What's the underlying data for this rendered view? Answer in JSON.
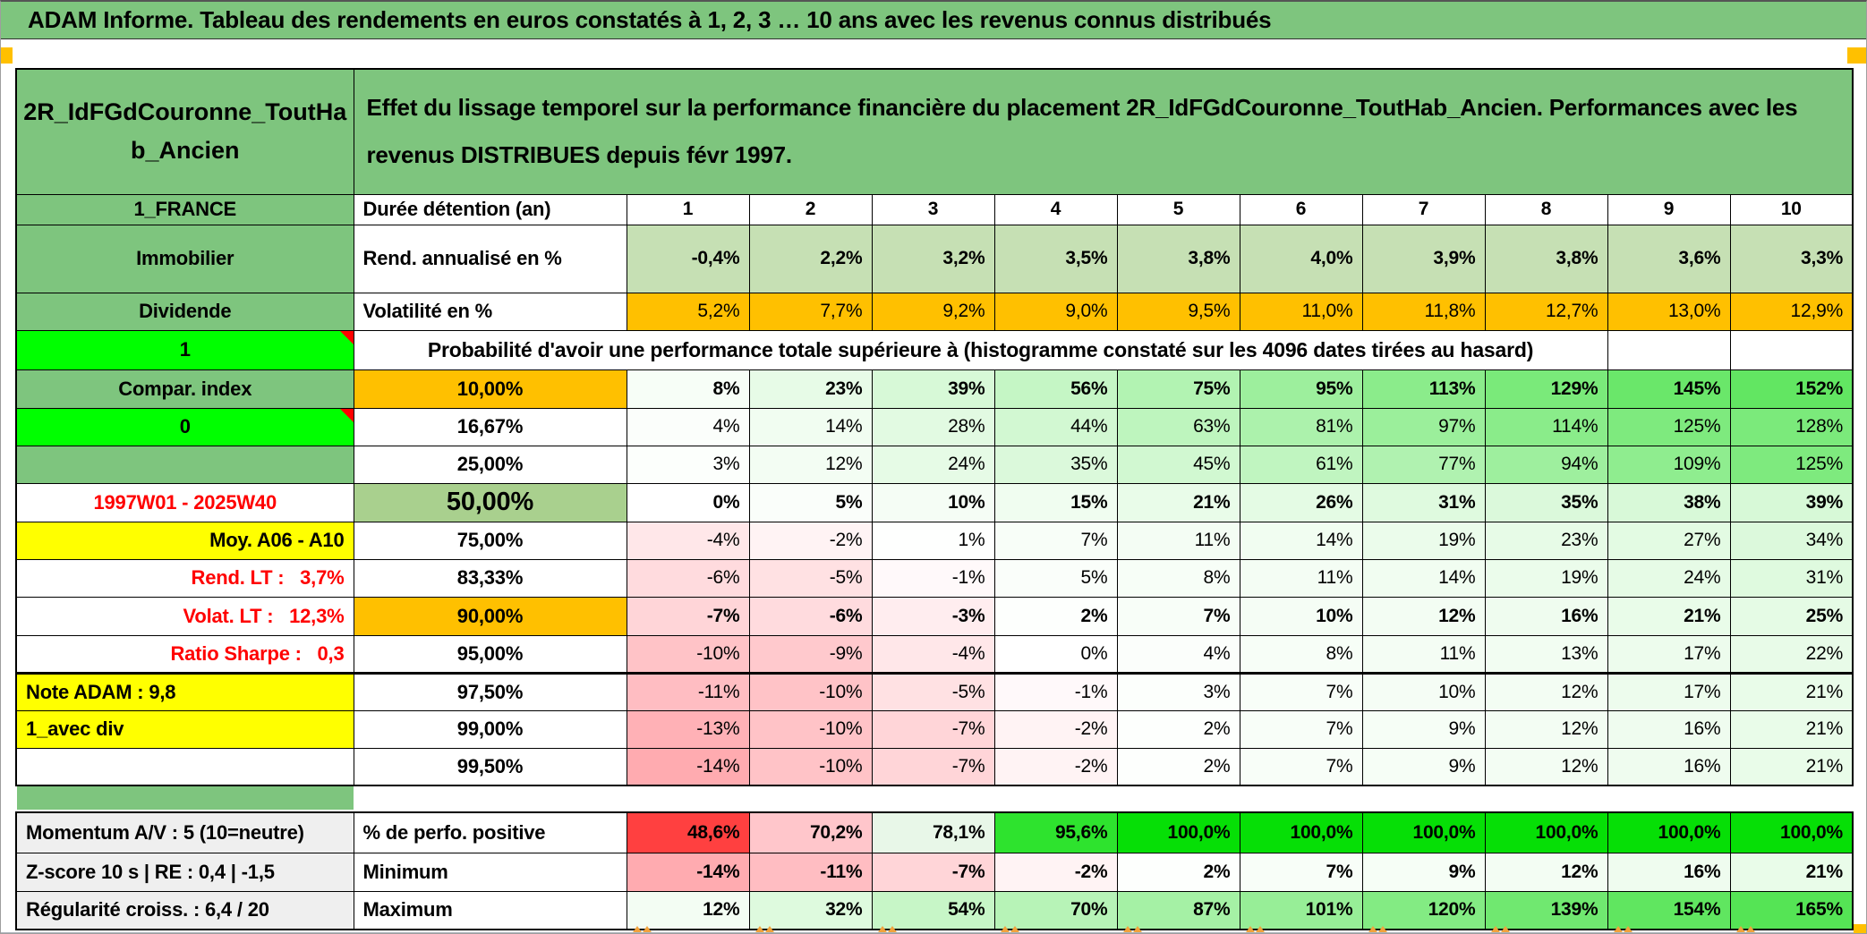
{
  "title": "ADAM Informe. Tableau des rendements en euros constatés à 1, 2, 3 … 10 ans avec les revenus connus distribués",
  "header": {
    "left_label": "2R_IdFGdCouronne_ToutHab_Ancien",
    "description": "Effet du lissage temporel sur la performance financière du placement 2R_IdFGdCouronne_ToutHab_Ancien. Performances avec les revenus DISTRIBUES depuis févr 1997."
  },
  "colors": {
    "band_green": "#7EC57E",
    "bright_green": "#00FF00",
    "orange": "#FFC000",
    "yellow": "#FFFF00",
    "light_green_row": "#C6E0B4",
    "mid_green": "#A9D08E",
    "gray_label": "#EFEFEF",
    "red_text": "#FF0000"
  },
  "main_rows": [
    {
      "key": "duree",
      "label": "1_FRANCE",
      "ls": "green",
      "metric": "Durée détention (an)",
      "ms": "m-left",
      "align": "center",
      "bold": true,
      "bg": "#FFFFFF",
      "cells": [
        "1",
        "2",
        "3",
        "4",
        "5",
        "6",
        "7",
        "8",
        "9",
        "10"
      ]
    },
    {
      "key": "rendement",
      "label": "Immobilier",
      "ls": "green",
      "metric": "Rend. annualisé en %",
      "ms": "m-left",
      "bold": true,
      "bg": "#C6E0B4",
      "cells": [
        "-0,4%",
        "2,2%",
        "3,2%",
        "3,5%",
        "3,8%",
        "4,0%",
        "3,9%",
        "3,8%",
        "3,6%",
        "3,3%"
      ]
    },
    {
      "key": "volatilite",
      "label": "Dividende",
      "ls": "green",
      "metric": "Volatilité en %",
      "ms": "m-left",
      "bg": "#FFC000",
      "cells": [
        "5,2%",
        "7,7%",
        "9,2%",
        "9,0%",
        "9,5%",
        "11,0%",
        "11,8%",
        "12,7%",
        "13,0%",
        "12,9%"
      ]
    },
    {
      "key": "proba",
      "type": "merged",
      "label": "1",
      "ls": "bgreen",
      "corner": true,
      "span": 9,
      "empty": 2,
      "text": "Probabilité d'avoir une performance totale supérieure à (histogramme constaté sur les 4096 dates tirées au hasard)"
    },
    {
      "key": "p10",
      "label": "Compar. index",
      "ls": "green",
      "metric": "10,00%",
      "ms": "m-orange",
      "bold": true,
      "cells": [
        "8%",
        "23%",
        "39%",
        "56%",
        "75%",
        "95%",
        "113%",
        "129%",
        "145%",
        "152%"
      ],
      "bgs": [
        "#F7FEF7",
        "#E7FBE7",
        "#D7F9D7",
        "#C5F6C5",
        "#B2F3B2",
        "#9DEF9D",
        "#8BEC8B",
        "#7AEA7A",
        "#6AE76A",
        "#62E662"
      ]
    },
    {
      "key": "p1667",
      "label": "0",
      "ls": "bgreen",
      "corner": true,
      "metric": "16,67%",
      "ms": "m-center",
      "cells": [
        "4%",
        "14%",
        "28%",
        "44%",
        "63%",
        "81%",
        "97%",
        "114%",
        "125%",
        "128%"
      ],
      "bgs": [
        "#FBFEFB",
        "#F1FDF1",
        "#E2FAE2",
        "#D2F8D2",
        "#BEF5BE",
        "#ACF2AC",
        "#9BEF9B",
        "#8AEC8A",
        "#7EEA7E",
        "#7BEA7B"
      ]
    },
    {
      "key": "p25",
      "label": "",
      "ls": "green",
      "metric": "25,00%",
      "ms": "m-center",
      "cells": [
        "3%",
        "12%",
        "24%",
        "35%",
        "45%",
        "61%",
        "77%",
        "94%",
        "109%",
        "125%"
      ],
      "bgs": [
        "#FCFFFC",
        "#F3FDF3",
        "#E6FBE6",
        "#DBF9DB",
        "#D1F8D1",
        "#C0F5C0",
        "#B0F2B0",
        "#9EEF9E",
        "#8FED8F",
        "#7EEA7E"
      ]
    },
    {
      "key": "p50",
      "label": "1997W01 - 2025W40",
      "ls": "redlabel",
      "metric": "50,00%",
      "ms": "m-big",
      "bold": true,
      "cells": [
        "0%",
        "5%",
        "10%",
        "15%",
        "21%",
        "26%",
        "31%",
        "35%",
        "38%",
        "39%"
      ],
      "bgs": [
        "#FFFFFF",
        "#FAFEFA",
        "#F5FDF5",
        "#F0FDF0",
        "#E9FCE9",
        "#E4FBE4",
        "#DFFADF",
        "#DBF9DB",
        "#D8F9D8",
        "#D7F9D7"
      ]
    },
    {
      "key": "p75",
      "label": "Moy. A06 - A10",
      "ls": "yellow-r",
      "metric": "75,00%",
      "ms": "m-center",
      "cells": [
        "-4%",
        "-2%",
        "1%",
        "7%",
        "11%",
        "14%",
        "19%",
        "23%",
        "27%",
        "34%"
      ],
      "bgs": [
        "#FFE7E9",
        "#FFF3F4",
        "#FEFFFE",
        "#F8FEF8",
        "#F4FDF4",
        "#F1FDF1",
        "#EBFCEB",
        "#E7FBE7",
        "#E3FBE3",
        "#DCF9DC"
      ]
    },
    {
      "key": "p8333",
      "label": "Rend. LT :   3,7%",
      "ls": "red-r",
      "metric": "83,33%",
      "ms": "m-center",
      "cells": [
        "-6%",
        "-5%",
        "-1%",
        "5%",
        "8%",
        "11%",
        "14%",
        "19%",
        "24%",
        "31%"
      ],
      "bgs": [
        "#FFDBDE",
        "#FFE1E3",
        "#FFF9FA",
        "#FAFEFA",
        "#F7FEF7",
        "#F4FDF4",
        "#F1FDF1",
        "#EBFCEB",
        "#E6FBE6",
        "#DFFADF"
      ]
    },
    {
      "key": "p90",
      "label": "Volat. LT :   12,3%",
      "ls": "red-r",
      "metric": "90,00%",
      "ms": "m-orange",
      "bold": true,
      "cells": [
        "-7%",
        "-6%",
        "-3%",
        "2%",
        "7%",
        "10%",
        "12%",
        "16%",
        "21%",
        "25%"
      ],
      "bgs": [
        "#FFD5D8",
        "#FFDBDE",
        "#FFEDEF",
        "#FDFFFD",
        "#F8FEF8",
        "#F5FDF5",
        "#F3FDF3",
        "#EFFCEF",
        "#E9FCE9",
        "#E5FBE5"
      ]
    },
    {
      "key": "p95",
      "label": "Ratio Sharpe :   0,3",
      "ls": "red-r",
      "metric": "95,00%",
      "ms": "m-center",
      "thickBottom": true,
      "cells": [
        "-10%",
        "-9%",
        "-4%",
        "0%",
        "4%",
        "8%",
        "11%",
        "13%",
        "17%",
        "22%"
      ],
      "bgs": [
        "#FFC3C7",
        "#FFC9CD",
        "#FFE7E9",
        "#FFFFFF",
        "#FBFEFB",
        "#F7FEF7",
        "#F4FDF4",
        "#F2FDF2",
        "#EDFCED",
        "#E8FBE8"
      ]
    },
    {
      "key": "p975",
      "label": "Note ADAM : 9,8",
      "ls": "yellow-l",
      "metric": "97,50%",
      "ms": "m-center",
      "cells": [
        "-11%",
        "-10%",
        "-5%",
        "-1%",
        "3%",
        "7%",
        "10%",
        "12%",
        "17%",
        "21%"
      ],
      "bgs": [
        "#FFBDC2",
        "#FFC3C7",
        "#FFE1E3",
        "#FFF9FA",
        "#FCFFFC",
        "#F8FEF8",
        "#F5FDF5",
        "#F3FDF3",
        "#EDFCED",
        "#E9FCE9"
      ]
    },
    {
      "key": "p99",
      "label": "1_avec div",
      "ls": "yellow-l",
      "metric": "99,00%",
      "ms": "m-center",
      "cells": [
        "-13%",
        "-10%",
        "-7%",
        "-2%",
        "2%",
        "7%",
        "9%",
        "12%",
        "16%",
        "21%"
      ],
      "bgs": [
        "#FFB1B6",
        "#FFC3C7",
        "#FFD5D8",
        "#FFF3F4",
        "#FDFFFD",
        "#F8FEF8",
        "#F6FEF6",
        "#F3FDF3",
        "#EFFCEF",
        "#E9FCE9"
      ]
    },
    {
      "key": "p995",
      "label": "",
      "ls": "plain",
      "metric": "99,50%",
      "ms": "m-center",
      "cells": [
        "-14%",
        "-10%",
        "-7%",
        "-2%",
        "2%",
        "7%",
        "9%",
        "12%",
        "16%",
        "21%"
      ],
      "bgs": [
        "#FFABB0",
        "#FFC3C7",
        "#FFD5D8",
        "#FFF3F4",
        "#FDFFFD",
        "#F8FEF8",
        "#F6FEF6",
        "#F3FDF3",
        "#EFFCEF",
        "#E9FCE9"
      ]
    }
  ],
  "bottom_rows": [
    {
      "key": "perfo",
      "label": "Momentum A/V : 5 (10=neutre)",
      "ls": "gray",
      "metric": "% de perfo. positive",
      "ms": "m-left",
      "bold": true,
      "cells": [
        "48,6%",
        "70,2%",
        "78,1%",
        "95,6%",
        "100,0%",
        "100,0%",
        "100,0%",
        "100,0%",
        "100,0%",
        "100,0%"
      ],
      "bgs": [
        "#FF4040",
        "#FFC6CB",
        "#E8F7E8",
        "#2EE32E",
        "#06DF06",
        "#06DF06",
        "#06DF06",
        "#06DF06",
        "#06DF06",
        "#06DF06"
      ]
    },
    {
      "key": "minimum",
      "label": "Z-score 10 s | RE : 0,4 | -1,5",
      "ls": "gray",
      "metric": "Minimum",
      "ms": "m-left",
      "bold": true,
      "cells": [
        "-14%",
        "-11%",
        "-7%",
        "-2%",
        "2%",
        "7%",
        "9%",
        "12%",
        "16%",
        "21%"
      ],
      "bgs": [
        "#FFABB0",
        "#FFBDC2",
        "#FFD5D8",
        "#FFF3F4",
        "#FDFFFD",
        "#F8FEF8",
        "#F6FEF6",
        "#F3FDF3",
        "#EFFCEF",
        "#E9FCE9"
      ]
    },
    {
      "key": "maximum",
      "label": "Régularité croiss. : 6,4 / 20",
      "ls": "gray",
      "metric": "Maximum",
      "ms": "m-left",
      "bold": true,
      "cells": [
        "12%",
        "32%",
        "54%",
        "70%",
        "87%",
        "101%",
        "120%",
        "139%",
        "154%",
        "165%"
      ],
      "bgs": [
        "#F3FDF3",
        "#DEFADE",
        "#C7F6C7",
        "#B7F3B7",
        "#A5F1A5",
        "#97EE97",
        "#83EB83",
        "#70E870",
        "#60E660",
        "#55E455"
      ]
    }
  ]
}
